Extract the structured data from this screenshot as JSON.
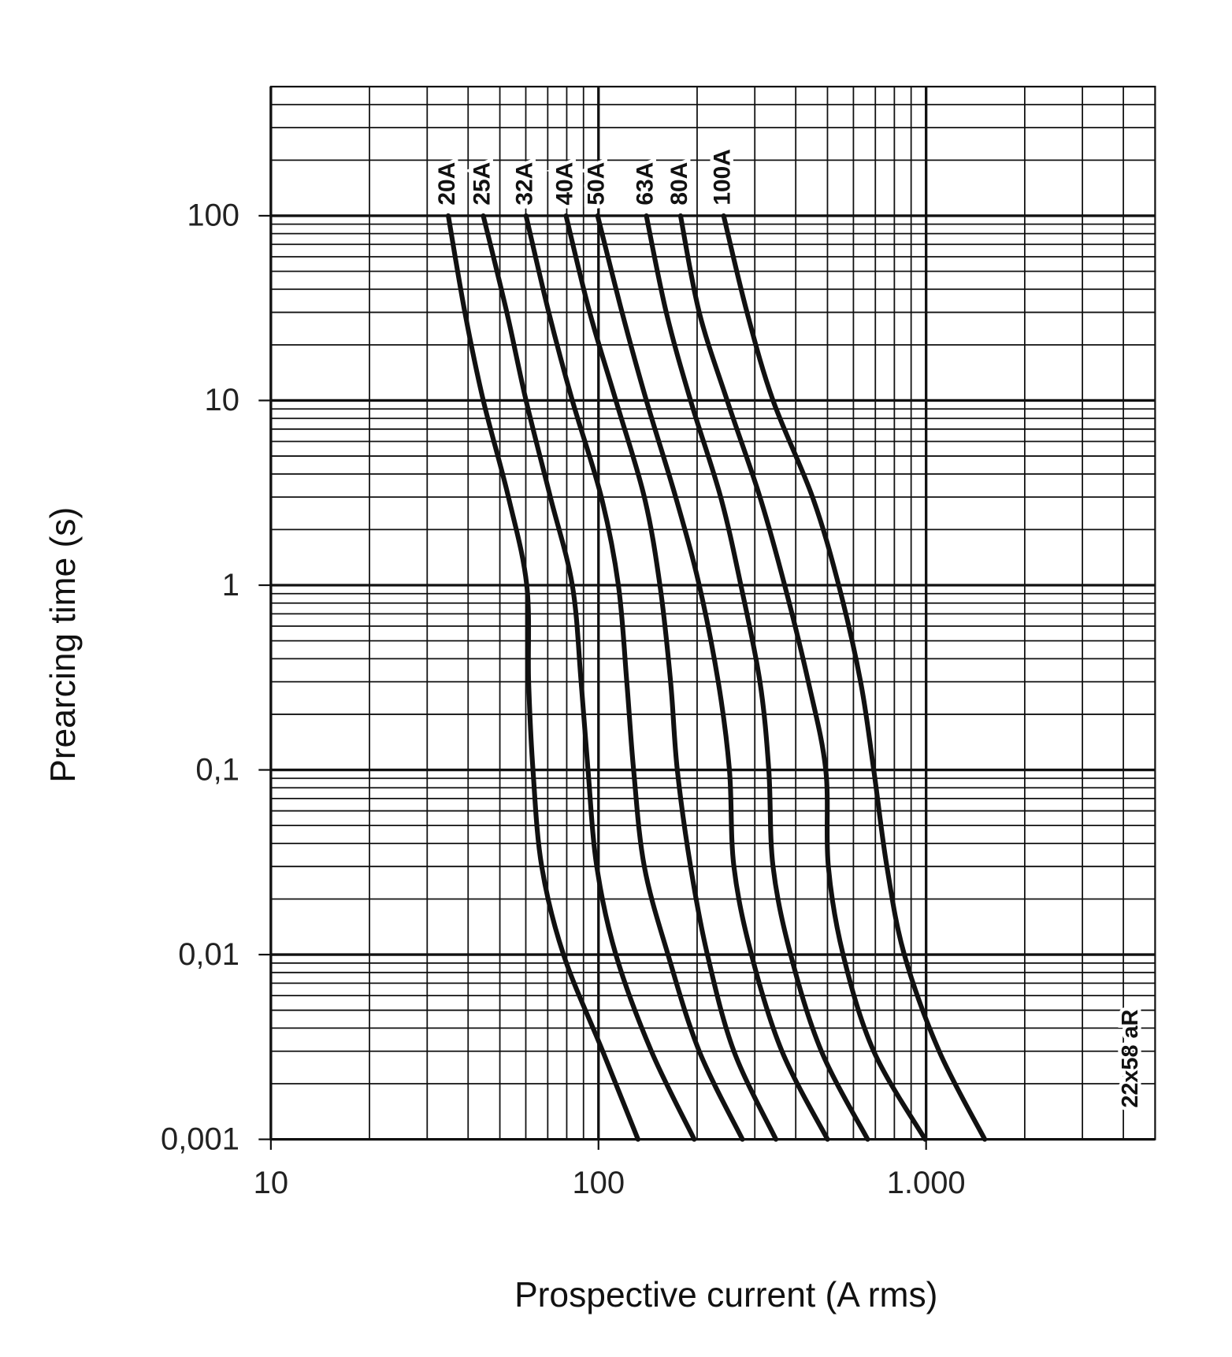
{
  "chart_data": {
    "type": "line",
    "x_label": "Prospective current (A rms)",
    "y_label": "Prearcing time (s)",
    "annotation": "22x58 aR",
    "x_log": true,
    "y_log": true,
    "grid": true,
    "minor_grid": true,
    "xlim": [
      10,
      5000
    ],
    "ylim": [
      0.001,
      500
    ],
    "xticks": [
      10,
      100,
      {
        "value": 1000,
        "label": "1.000"
      }
    ],
    "yticks": [
      {
        "value": 0.001,
        "label": "0,001"
      },
      {
        "value": 0.01,
        "label": "0,01"
      },
      {
        "value": 0.1,
        "label": "0,1"
      },
      1,
      10,
      100
    ],
    "series": [
      {
        "name": "20A",
        "color": "#111111",
        "x": [
          34.8,
          39.1,
          44.5,
          53.1,
          60.4,
          61.2,
          63.1,
          67.1,
          78.2,
          103,
          132
        ],
        "values": [
          100,
          30,
          10,
          3,
          1,
          0.3,
          0.1,
          0.03,
          0.01,
          0.003,
          0.001
        ]
      },
      {
        "name": "25A",
        "color": "#111111",
        "x": [
          44.5,
          52.5,
          60.1,
          71.3,
          83.2,
          88.5,
          92.9,
          98.8,
          113,
          145,
          196
        ],
        "values": [
          100,
          30,
          10,
          3,
          1,
          0.3,
          0.1,
          0.03,
          0.01,
          0.003,
          0.001
        ]
      },
      {
        "name": "32A",
        "color": "#111111",
        "x": [
          60.1,
          70.5,
          83.2,
          102,
          115,
          122,
          128,
          138,
          163,
          203,
          275
        ],
        "values": [
          100,
          30,
          10,
          3,
          1,
          0.3,
          0.1,
          0.03,
          0.01,
          0.003,
          0.001
        ]
      },
      {
        "name": "40A",
        "color": "#111111",
        "x": [
          79.6,
          94.0,
          113,
          138,
          154,
          166,
          174,
          191,
          215,
          259,
          348
        ],
        "values": [
          100,
          30,
          10,
          3,
          1,
          0.3,
          0.1,
          0.03,
          0.01,
          0.003,
          0.001
        ]
      },
      {
        "name": "50A",
        "color": "#111111",
        "x": [
          99.4,
          118,
          140,
          172,
          203,
          232,
          251,
          259,
          293,
          363,
          500
        ],
        "values": [
          100,
          30,
          10,
          3,
          1,
          0.3,
          0.1,
          0.03,
          0.01,
          0.003,
          0.001
        ]
      },
      {
        "name": "63A",
        "color": "#111111",
        "x": [
          140,
          161,
          191,
          236,
          272,
          311,
          331,
          341,
          386,
          479,
          663
        ],
        "values": [
          100,
          30,
          10,
          3,
          1,
          0.3,
          0.1,
          0.03,
          0.01,
          0.003,
          0.001
        ]
      },
      {
        "name": "80A",
        "color": "#111111",
        "x": [
          178,
          203,
          247,
          311,
          370,
          437,
          494,
          503,
          558,
          692,
          993
        ],
        "values": [
          100,
          30,
          10,
          3,
          1,
          0.3,
          0.1,
          0.03,
          0.01,
          0.003,
          0.001
        ]
      },
      {
        "name": "100A",
        "color": "#111111",
        "x": [
          241,
          284,
          341,
          450,
          541,
          631,
          692,
          759,
          858,
          1096,
          1510
        ],
        "values": [
          100,
          30,
          10,
          3,
          1,
          0.3,
          0.1,
          0.03,
          0.01,
          0.003,
          0.001
        ]
      }
    ]
  }
}
